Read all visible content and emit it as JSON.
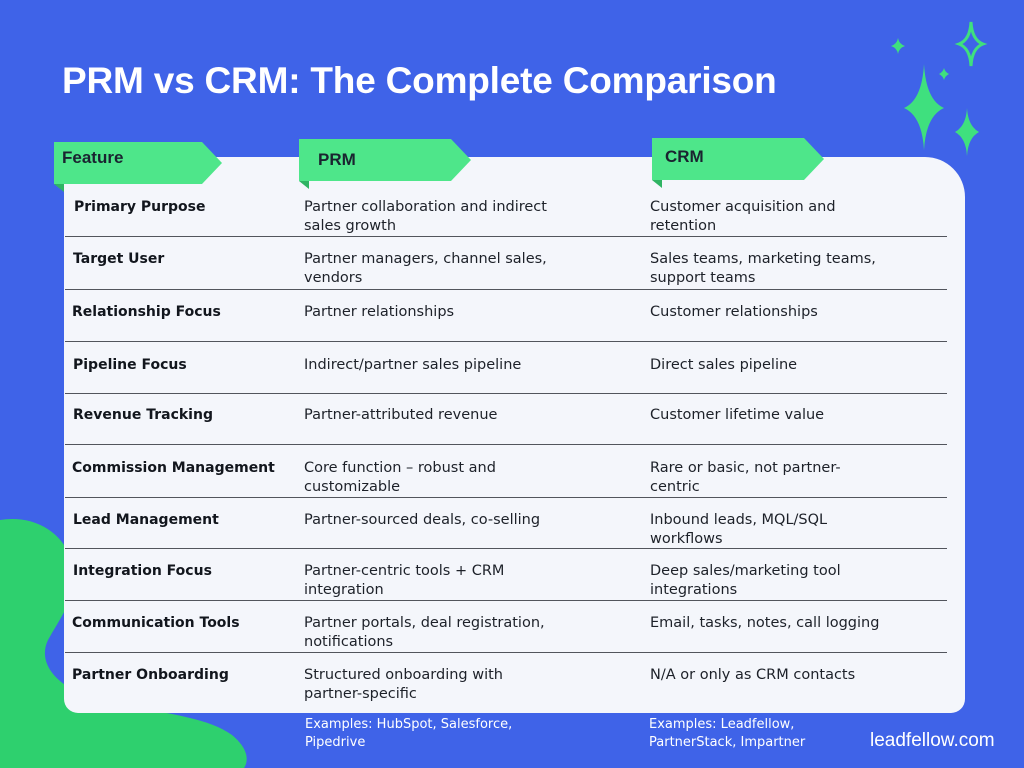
{
  "title": "PRM vs CRM: The Complete Comparison",
  "headers": {
    "feature": "Feature",
    "prm": "PRM",
    "crm": "CRM"
  },
  "rows": [
    {
      "feature": "Primary Purpose",
      "prm": "Partner collaboration and indirect\nsales growth",
      "crm": "Customer acquisition and\nretention"
    },
    {
      "feature": "Target User",
      "prm": "Partner managers, channel sales,\nvendors",
      "crm": "Sales teams, marketing teams,\nsupport teams"
    },
    {
      "feature": "Relationship Focus",
      "prm": "Partner relationships",
      "crm": "Customer relationships"
    },
    {
      "feature": "Pipeline Focus",
      "prm": "Indirect/partner sales pipeline",
      "crm": "Direct sales pipeline"
    },
    {
      "feature": "Revenue Tracking",
      "prm": "Partner-attributed revenue",
      "crm": "Customer lifetime value"
    },
    {
      "feature": "Commission Management",
      "prm": "Core function – robust and\ncustomizable",
      "crm": "Rare or basic, not partner-\ncentric"
    },
    {
      "feature": "Lead Management",
      "prm": "Partner-sourced deals, co-selling",
      "crm": "Inbound leads, MQL/SQL\nworkflows"
    },
    {
      "feature": "Integration Focus",
      "prm": "Partner-centric tools + CRM\nintegration",
      "crm": "Deep sales/marketing tool\nintegrations"
    },
    {
      "feature": "Communication Tools",
      "prm": "Partner portals, deal registration,\nnotifications",
      "crm": "Email, tasks, notes, call logging"
    },
    {
      "feature": "Partner Onboarding",
      "prm": "Structured onboarding with\npartner-specific",
      "crm": "N/A or only as CRM contacts"
    }
  ],
  "examples": {
    "prm": "Examples: HubSpot, Salesforce,\nPipedrive",
    "crm": "Examples: Leadfellow,\nPartnerStack, Impartner"
  },
  "brand": "leadfellow.com",
  "colors": {
    "background": "#3f63e8",
    "tab": "#4ee68a",
    "card": "#f4f6fb",
    "blob": "#2ed06e",
    "sparkle": "#3fe07e"
  },
  "icons": [
    "sparkle-icon"
  ]
}
